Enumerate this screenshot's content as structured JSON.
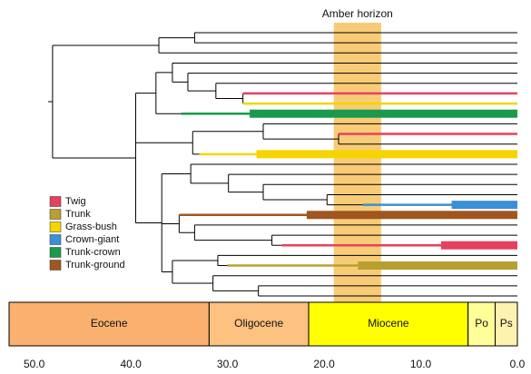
{
  "chart_data": {
    "type": "tree",
    "xlim": [
      52.6,
      0
    ],
    "xticks": [
      {
        "value": 50,
        "label": "50.0"
      },
      {
        "value": 40,
        "label": "40.0"
      },
      {
        "value": 30,
        "label": "30.0"
      },
      {
        "value": 20,
        "label": "20.0"
      },
      {
        "value": 10,
        "label": "10.0"
      },
      {
        "value": 0,
        "label": "0.0"
      }
    ],
    "amber_horizon": {
      "label": "Amber horizon",
      "range": [
        19,
        14.1
      ],
      "color": "#f7c35f"
    },
    "epochs": [
      {
        "name": "Eocene",
        "range": [
          52.6,
          31.9
        ],
        "color": "#fab16f"
      },
      {
        "name": "Oligocene",
        "range": [
          31.9,
          21.6
        ],
        "color": "#fdc180"
      },
      {
        "name": "Miocene",
        "range": [
          21.6,
          5.1
        ],
        "color": "#ffff00"
      },
      {
        "name": "Po",
        "range": [
          5.1,
          2.3
        ],
        "color": "#ffff99"
      },
      {
        "name": "Ps",
        "range": [
          2.3,
          0
        ],
        "color": "#fff2ae"
      }
    ],
    "legend": [
      {
        "name": "Twig",
        "color": "#e8405f"
      },
      {
        "name": "Trunk",
        "color": "#b8a030"
      },
      {
        "name": "Grass-bush",
        "color": "#f5d400"
      },
      {
        "name": "Crown-giant",
        "color": "#3a8fd6"
      },
      {
        "name": "Trunk-crown",
        "color": "#1a9a4a"
      },
      {
        "name": "Trunk-ground",
        "color": "#a0561e"
      }
    ],
    "tree": {
      "age": 48.1,
      "children": [
        {
          "age": 37.1,
          "children": [
            {
              "age": 33.4,
              "children": [
                {},
                {}
              ]
            },
            {}
          ]
        },
        {
          "age": 39.5,
          "children": [
            {
              "age": 37.4,
              "children": [
                {
                  "age": 35.7,
                  "children": [
                    {},
                    {
                      "age": 34.1,
                      "children": [
                        {},
                        {
                          "age": 31.2,
                          "children": [
                            {},
                            {
                              "age": 28.4,
                              "children": [
                                {
                                  "trait": {
                                    "name": "Twig",
                                    "from": 28.4
                                  }
                                },
                                {
                                  "trait": {
                                    "name": "Grass-bush",
                                    "from": 28.4
                                  }
                                }
                              ]
                            }
                          ]
                        }
                      ]
                    }
                  ]
                },
                {
                  "trait": {
                    "name": "Trunk-crown",
                    "from": 34.8,
                    "thick_from": 27.7
                  }
                }
              ]
            },
            {
              "age": 33.6,
              "children": [
                {
                  "age": 26.3,
                  "children": [
                    {},
                    {
                      "age": 18.5,
                      "children": [
                        {
                          "trait": {
                            "name": "Twig",
                            "from": 18.5
                          }
                        },
                        {}
                      ]
                    }
                  ]
                },
                {
                  "trait": {
                    "name": "Grass-bush",
                    "from": 32.9,
                    "thick_from": 27
                  }
                }
              ]
            },
            {
              "age": 36.8,
              "children": [
                {
                  "age": 33.8,
                  "children": [
                    {},
                    {
                      "age": 29.9,
                      "children": [
                        {},
                        {
                          "age": 26.3,
                          "children": [
                            {},
                            {
                              "age": 19.7,
                              "children": [
                                {},
                                {
                                  "trait": {
                                    "name": "Crown-giant",
                                    "from": 16,
                                    "thick_from": 6.8
                                  }
                                }
                              ]
                            }
                          ]
                        }
                      ]
                    }
                  ]
                },
                {
                  "age": 35.0,
                  "children": [
                    {
                      "trait": {
                        "name": "Trunk-ground",
                        "from": 35.0,
                        "thick_from": 21.8
                      }
                    },
                    {
                      "age": 33.4,
                      "children": [
                        {},
                        {
                          "age": 25.4,
                          "children": [
                            {},
                            {
                              "trait": {
                                "name": "Twig",
                                "from": 24.4,
                                "thick_from": 7.9
                              }
                            }
                          ]
                        }
                      ]
                    }
                  ]
                },
                {
                  "age": 35.7,
                  "children": [
                    {
                      "age": 31,
                      "children": [
                        {},
                        {
                          "trait": {
                            "name": "Trunk",
                            "from": 30,
                            "thick_from": 16.5
                          }
                        }
                      ]
                    },
                    {
                      "age": 31.5,
                      "children": [
                        {},
                        {
                          "age": 26.8,
                          "children": [
                            {},
                            {}
                          ]
                        }
                      ]
                    }
                  ]
                }
              ]
            }
          ]
        }
      ]
    }
  }
}
